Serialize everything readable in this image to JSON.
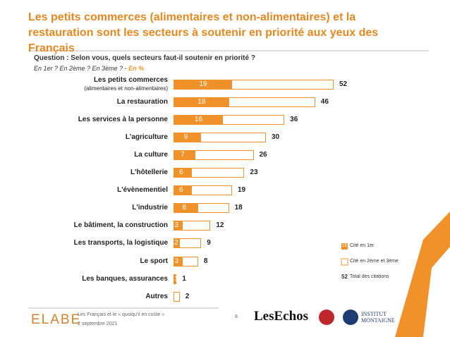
{
  "chart_data": {
    "type": "bar",
    "orientation": "horizontal",
    "title": "Les petits commerces (alimentaires et non-alimentaires) et la restauration sont les secteurs à soutenir en priorité aux yeux des Français",
    "question": "Question : Selon vous, quels secteurs faut-il soutenir en priorité ?",
    "subtitle": "En 1er ? En 2ème ? En 3ème ? -",
    "subtitle_unit": "En %",
    "categories": [
      "Les petits commerces\n(alimentaires et non-alimentaires)",
      "La restauration",
      "Les services à la personne",
      "L'agriculture",
      "La culture",
      "L'hôtellerie",
      "L'évènementiel",
      "L'industrie",
      "Le bâtiment, la construction",
      "Les transports, la logistique",
      "Le sport",
      "Les banques, assurances",
      "Autres"
    ],
    "series": [
      {
        "name": "Cité en 1er",
        "color": "#f0912a",
        "values": [
          19,
          18,
          16,
          9,
          7,
          6,
          6,
          8,
          3,
          2,
          3,
          1,
          null
        ]
      },
      {
        "name": "Total des citations",
        "color": "#f0912a",
        "values": [
          52,
          46,
          36,
          30,
          26,
          23,
          19,
          18,
          12,
          9,
          8,
          1,
          2
        ]
      }
    ],
    "legend": [
      {
        "sample": "19",
        "label": "Cité en 1er"
      },
      {
        "label": "Cité en 2ème et 3ème"
      },
      {
        "sample": "52",
        "label": "Total des citations"
      }
    ],
    "footer": {
      "brand": "ELABE",
      "line1": "Les Français et le « quoiqu'il en coûte »",
      "line2": "2 septembre 2021",
      "page": "8",
      "partner1": "LesEchos",
      "partner2": "INSTITUT MONTAIGNE"
    }
  }
}
